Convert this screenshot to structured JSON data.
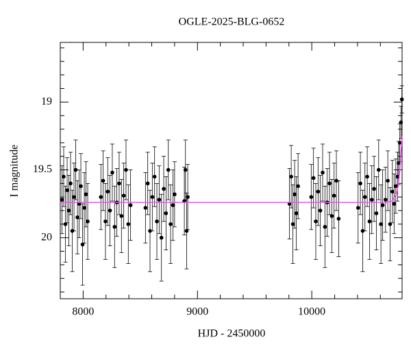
{
  "chart_data": {
    "type": "errorbar",
    "title": "OGLE-2025-BLG-0652",
    "x_label": "HJD - 2450000",
    "y_label": "I magnitude",
    "xlim": [
      7800,
      10790
    ],
    "ylim": [
      20.45,
      18.56
    ],
    "xticks": [
      8000,
      9000,
      10000
    ],
    "yticks": [
      19,
      19.5,
      20
    ],
    "xminorticks": [
      8200,
      8400,
      8600,
      8800,
      9200,
      9400,
      9600,
      9800,
      10200,
      10400,
      10600
    ],
    "yminorticks": [
      18.6,
      18.7,
      18.8,
      18.9,
      19.1,
      19.2,
      19.3,
      19.4,
      19.6,
      19.7,
      19.8,
      19.9,
      20.1,
      20.2,
      20.3,
      20.4
    ],
    "series": [
      {
        "color": "#000000",
        "x": [
          7815,
          7830,
          7845,
          7860,
          7875,
          7890,
          7905,
          7920,
          7935,
          7950,
          7965,
          7980,
          7995,
          8010,
          8025,
          8040,
          8155,
          8175,
          8195,
          8215,
          8235,
          8255,
          8275,
          8295,
          8315,
          8335,
          8355,
          8375,
          8395,
          8415,
          8545,
          8565,
          8585,
          8605,
          8625,
          8645,
          8665,
          8685,
          8705,
          8725,
          8745,
          8765,
          8785,
          8800,
          8885,
          8895,
          8905,
          8915,
          9805,
          9820,
          9835,
          9850,
          9865,
          9880,
          9995,
          10015,
          10035,
          10055,
          10075,
          10095,
          10115,
          10135,
          10155,
          10175,
          10195,
          10215,
          10235,
          10405,
          10425,
          10445,
          10465,
          10485,
          10505,
          10525,
          10545,
          10565,
          10585,
          10605,
          10620,
          10645,
          10665,
          10685,
          10705,
          10720,
          10735,
          10750,
          10760,
          10770,
          10780,
          10788
        ],
        "values": [
          19.72,
          19.55,
          19.9,
          19.65,
          19.8,
          19.6,
          19.95,
          19.7,
          19.5,
          19.85,
          19.75,
          19.62,
          20.05,
          19.78,
          19.68,
          19.88,
          19.7,
          19.58,
          19.88,
          19.66,
          19.8,
          19.52,
          19.92,
          19.74,
          19.6,
          19.84,
          19.69,
          19.5,
          19.9,
          19.76,
          19.78,
          19.6,
          19.95,
          19.7,
          19.55,
          19.88,
          19.72,
          20.0,
          19.64,
          19.82,
          19.5,
          19.9,
          19.76,
          19.68,
          19.73,
          19.5,
          19.95,
          19.7,
          19.75,
          19.55,
          19.9,
          19.68,
          19.82,
          19.62,
          19.7,
          19.56,
          19.88,
          19.66,
          19.8,
          19.52,
          19.92,
          19.74,
          19.6,
          19.84,
          19.69,
          19.58,
          19.86,
          19.78,
          19.6,
          19.95,
          19.7,
          19.55,
          19.88,
          19.72,
          19.64,
          19.82,
          19.5,
          19.9,
          19.76,
          19.72,
          19.58,
          19.9,
          19.66,
          19.75,
          19.62,
          19.55,
          19.45,
          19.3,
          19.15,
          18.98
        ],
        "errors": [
          0.25,
          0.22,
          0.28,
          0.24,
          0.26,
          0.23,
          0.3,
          0.25,
          0.22,
          0.27,
          0.25,
          0.24,
          0.3,
          0.26,
          0.24,
          0.28,
          0.24,
          0.22,
          0.28,
          0.25,
          0.26,
          0.21,
          0.3,
          0.25,
          0.23,
          0.27,
          0.24,
          0.22,
          0.29,
          0.26,
          0.26,
          0.23,
          0.3,
          0.25,
          0.22,
          0.28,
          0.25,
          0.32,
          0.24,
          0.27,
          0.22,
          0.29,
          0.26,
          0.24,
          0.25,
          0.22,
          0.28,
          0.24,
          0.26,
          0.23,
          0.29,
          0.25,
          0.27,
          0.24,
          0.24,
          0.22,
          0.28,
          0.25,
          0.26,
          0.21,
          0.3,
          0.25,
          0.23,
          0.27,
          0.24,
          0.22,
          0.28,
          0.26,
          0.23,
          0.3,
          0.25,
          0.22,
          0.28,
          0.25,
          0.24,
          0.27,
          0.22,
          0.29,
          0.26,
          0.24,
          0.22,
          0.27,
          0.23,
          0.22,
          0.2,
          0.18,
          0.16,
          0.14,
          0.12,
          0.1
        ]
      }
    ],
    "model": {
      "color": "#ff44ff",
      "x": [
        7800,
        10650,
        10700,
        10740,
        10760,
        10775,
        10790
      ],
      "values": [
        19.74,
        19.74,
        19.73,
        19.68,
        19.6,
        19.45,
        19.25
      ]
    }
  }
}
